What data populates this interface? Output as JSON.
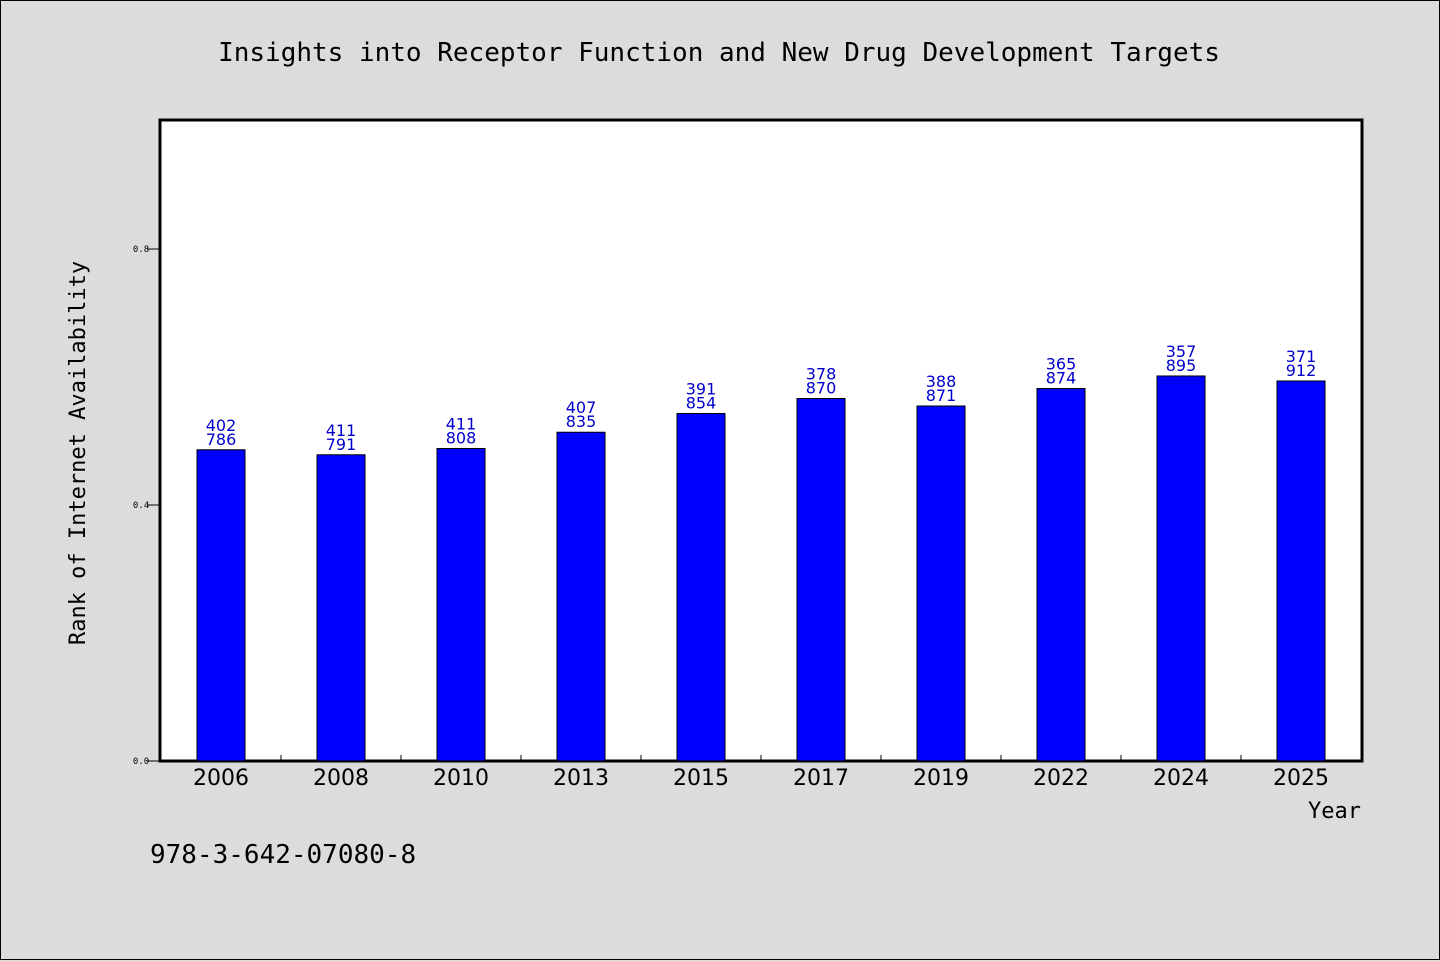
{
  "chart_data": {
    "type": "bar",
    "title": "Insights into Receptor Function and New Drug Development Targets",
    "xlabel": "Year",
    "ylabel": "Rank of Internet Availability",
    "categories": [
      "2006",
      "2008",
      "2010",
      "2013",
      "2015",
      "2017",
      "2019",
      "2022",
      "2024",
      "2025"
    ],
    "values": [
      0.4863,
      0.4785,
      0.4883,
      0.5137,
      0.543,
      0.5664,
      0.5547,
      0.582,
      0.6016,
      0.5938
    ],
    "bar_labels": [
      [
        "402",
        "786"
      ],
      [
        "411",
        "791"
      ],
      [
        "411",
        "808"
      ],
      [
        "407",
        "835"
      ],
      [
        "391",
        "854"
      ],
      [
        "378",
        "870"
      ],
      [
        "388",
        "871"
      ],
      [
        "365",
        "874"
      ],
      [
        "357",
        "895"
      ],
      [
        "371",
        "912"
      ]
    ],
    "ylim": [
      0,
      1.0
    ],
    "yticks": [
      0.0,
      0.4,
      0.8
    ],
    "ytick_labels": [
      "0.0",
      "0.4",
      "0.8"
    ],
    "grid": false,
    "colors": {
      "bar": "#0000ff",
      "label": "#0000cc",
      "background": "#dcdcdc",
      "plot": "#ffffff"
    }
  },
  "footer_id": "978-3-642-07080-8"
}
